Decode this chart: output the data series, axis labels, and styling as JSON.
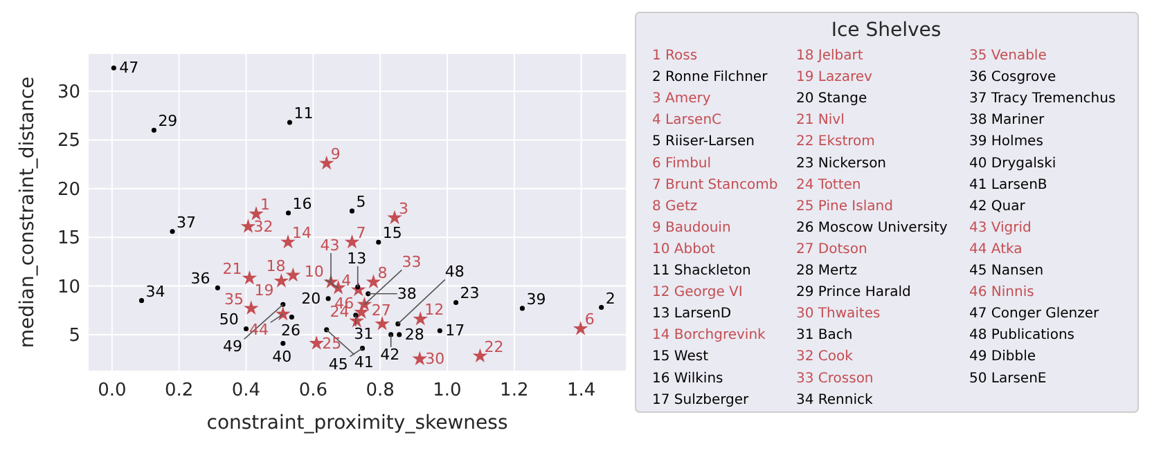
{
  "chart_data": {
    "type": "scatter",
    "xlabel": "constraint_proximity_skewness",
    "ylabel": "median_constraint_distance",
    "legend_title": "Ice Shelves",
    "grid": true,
    "xlim": [
      -0.07,
      1.533
    ],
    "ylim": [
      1.3,
      33.84
    ],
    "xticks": [
      {
        "value": 0,
        "label": "0.0"
      },
      {
        "value": 0.2,
        "label": "0.2"
      },
      {
        "value": 0.4,
        "label": "0.4"
      },
      {
        "value": 0.6,
        "label": "0.6"
      },
      {
        "value": 0.8,
        "label": "0.8"
      },
      {
        "value": 1,
        "label": "1.0"
      },
      {
        "value": 1.2,
        "label": "1.2"
      },
      {
        "value": 1.4,
        "label": "1.4"
      }
    ],
    "yticks": [
      5,
      10,
      15,
      20,
      25,
      30
    ],
    "series": [
      {
        "color": "#c44e52",
        "marker": "star",
        "x": [
          0.43,
          0.843,
          0.735,
          1.398,
          0.716,
          0.78,
          0.64,
          0.675,
          0.92,
          0.525,
          0.54,
          0.505,
          0.41,
          1.098,
          0.73,
          0.61,
          0.806,
          0.918,
          0.406,
          0.753,
          0.415,
          0.653,
          0.51,
          0.744
        ],
        "values": [
          17.4,
          17.0,
          9.6,
          5.6,
          14.5,
          10.4,
          22.6,
          9.8,
          6.6,
          14.5,
          11.1,
          10.5,
          10.8,
          2.8,
          6.4,
          4.1,
          6.1,
          2.5,
          16.1,
          8.1,
          7.7,
          10.4,
          7.1,
          7.3
        ]
      },
      {
        "color": "#000000",
        "marker": "circle",
        "x": [
          1.46,
          0.716,
          0.53,
          0.733,
          0.795,
          0.526,
          0.978,
          0.645,
          1.026,
          0.536,
          0.857,
          0.125,
          0.727,
          0.088,
          0.315,
          0.18,
          0.764,
          1.224,
          0.51,
          0.64,
          0.832,
          0.747,
          0.005,
          0.853,
          0.51,
          0.4
        ],
        "values": [
          7.8,
          17.7,
          26.8,
          9.9,
          14.5,
          17.5,
          5.4,
          8.7,
          8.3,
          6.8,
          5.0,
          26.0,
          7.0,
          8.5,
          9.8,
          15.6,
          9.2,
          7.7,
          4.1,
          5.5,
          5.0,
          3.6,
          32.4,
          6.1,
          8.1,
          5.6
        ]
      }
    ],
    "annotations": [
      {
        "text": "1",
        "x": 0.43,
        "y": 17.4
      },
      {
        "text": "2",
        "x": 1.46,
        "y": 7.8
      },
      {
        "text": "3",
        "x": 0.843,
        "y": 17.0
      },
      {
        "text": "4",
        "x": 0.735,
        "y": 9.6
      },
      {
        "text": "5",
        "x": 0.716,
        "y": 17.7
      },
      {
        "text": "6",
        "x": 1.398,
        "y": 5.6
      },
      {
        "text": "7",
        "x": 0.716,
        "y": 14.5
      },
      {
        "text": "8",
        "x": 0.78,
        "y": 10.4
      },
      {
        "text": "9",
        "x": 0.64,
        "y": 22.6
      },
      {
        "text": "10",
        "x": 0.675,
        "y": 9.8
      },
      {
        "text": "11",
        "x": 0.53,
        "y": 26.8
      },
      {
        "text": "12",
        "x": 0.92,
        "y": 6.6
      },
      {
        "text": "13",
        "x": 0.733,
        "y": 9.9
      },
      {
        "text": "14",
        "x": 0.525,
        "y": 14.5
      },
      {
        "text": "15",
        "x": 0.795,
        "y": 14.5
      },
      {
        "text": "16",
        "x": 0.526,
        "y": 17.5
      },
      {
        "text": "17",
        "x": 0.978,
        "y": 5.4
      },
      {
        "text": "18",
        "x": 0.54,
        "y": 11.1
      },
      {
        "text": "19",
        "x": 0.505,
        "y": 10.5
      },
      {
        "text": "20",
        "x": 0.645,
        "y": 8.7
      },
      {
        "text": "21",
        "x": 0.41,
        "y": 10.8
      },
      {
        "text": "22",
        "x": 1.098,
        "y": 2.8
      },
      {
        "text": "23",
        "x": 1.026,
        "y": 8.3
      },
      {
        "text": "24",
        "x": 0.73,
        "y": 6.4
      },
      {
        "text": "25",
        "x": 0.61,
        "y": 4.1
      },
      {
        "text": "26",
        "x": 0.536,
        "y": 6.8
      },
      {
        "text": "27",
        "x": 0.806,
        "y": 6.1
      },
      {
        "text": "28",
        "x": 0.857,
        "y": 5.0
      },
      {
        "text": "29",
        "x": 0.125,
        "y": 26.0
      },
      {
        "text": "30",
        "x": 0.918,
        "y": 2.5
      },
      {
        "text": "31",
        "x": 0.727,
        "y": 7.0
      },
      {
        "text": "32",
        "x": 0.406,
        "y": 16.1
      },
      {
        "text": "33",
        "x": 0.753,
        "y": 8.1
      },
      {
        "text": "34",
        "x": 0.088,
        "y": 8.5
      },
      {
        "text": "35",
        "x": 0.415,
        "y": 7.7
      },
      {
        "text": "36",
        "x": 0.315,
        "y": 9.8
      },
      {
        "text": "37",
        "x": 0.18,
        "y": 15.6
      },
      {
        "text": "38",
        "x": 0.764,
        "y": 9.2
      },
      {
        "text": "39",
        "x": 1.224,
        "y": 7.7
      },
      {
        "text": "40",
        "x": 0.51,
        "y": 4.1
      },
      {
        "text": "41",
        "x": 0.64,
        "y": 5.5
      },
      {
        "text": "42",
        "x": 0.832,
        "y": 5.0
      },
      {
        "text": "43",
        "x": 0.653,
        "y": 10.4
      },
      {
        "text": "44",
        "x": 0.51,
        "y": 7.1
      },
      {
        "text": "45",
        "x": 0.747,
        "y": 3.6
      },
      {
        "text": "46",
        "x": 0.744,
        "y": 7.3
      },
      {
        "text": "47",
        "x": 0.005,
        "y": 32.4
      },
      {
        "text": "48",
        "x": 0.853,
        "y": 6.1
      },
      {
        "text": "49",
        "x": 0.51,
        "y": 8.1
      },
      {
        "text": "50",
        "x": 0.4,
        "y": 5.6
      },
      "1 Ross",
      "2 Ronne Filchner",
      "3 Amery",
      "4 LarsenC",
      "5 Riiser-Larsen",
      "6 Fimbul",
      "7 Brunt Stancomb",
      "8 Getz",
      "9 Baudouin",
      "10 Abbot",
      "11 Shackleton",
      "12 George VI",
      "13 LarsenD",
      "14 Borchgrevink",
      "15 West",
      "16 Wilkins",
      "17 Sulzberger",
      "18 Jelbart",
      "19 Lazarev",
      "20 Stange",
      "21 Nivl",
      "22 Ekstrom",
      "23 Nickerson",
      "24 Totten",
      "25 Pine Island",
      "26 Moscow University",
      "27 Dotson",
      "28 Mertz",
      "29 Prince Harald",
      "30 Thwaites",
      "31 Bach",
      "32 Cook",
      "33 Crosson",
      "34 Rennick",
      "35 Venable",
      "36 Cosgrove",
      "37 Tracy Tremenchus",
      "38 Mariner",
      "39 Holmes",
      "40 Drygalski",
      "41 LarsenB",
      "42 Quar",
      "43 Vigrid",
      "44 Atka",
      "45 Nansen",
      "46 Ninnis",
      "47 Conger Glenzer",
      "48 Publications",
      "49 Dibble",
      "50 LarsenE"
    ]
  }
}
